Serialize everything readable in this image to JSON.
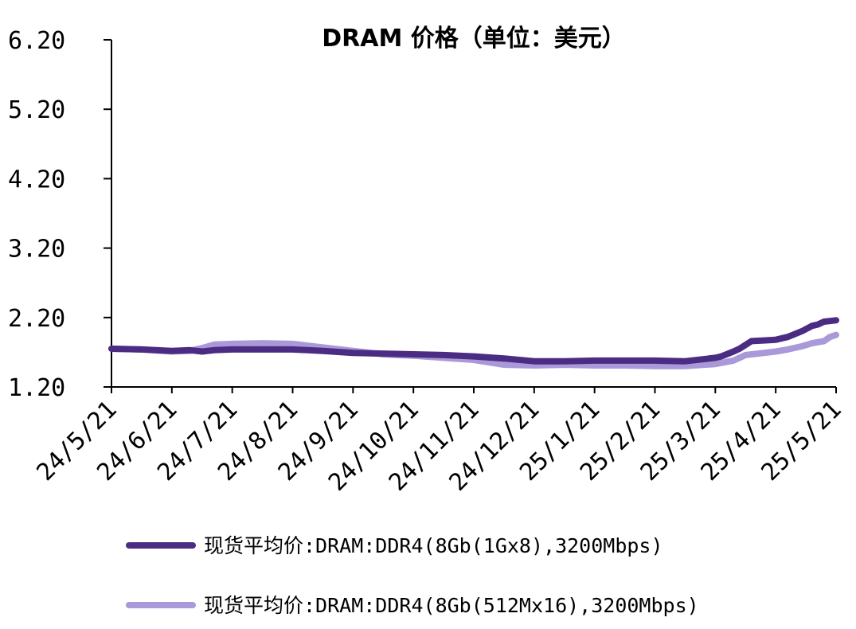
{
  "chart_data": {
    "type": "line",
    "title": "DRAM 价格（单位：美元）",
    "xlabel": "",
    "ylabel": "",
    "ylim": [
      1.2,
      6.2
    ],
    "yticks": [
      "6.20",
      "5.20",
      "4.20",
      "3.20",
      "2.20",
      "1.20"
    ],
    "yticks_values": [
      6.2,
      5.2,
      4.2,
      3.2,
      2.2,
      1.2
    ],
    "x_categories": [
      "24/5/21",
      "24/6/21",
      "24/7/21",
      "24/8/21",
      "24/9/21",
      "24/10/21",
      "24/11/21",
      "24/12/21",
      "25/1/21",
      "25/2/21",
      "25/3/21",
      "25/4/21",
      "25/5/21"
    ],
    "grid": false,
    "legend_position": "bottom",
    "series": [
      {
        "name": "现货平均价:DRAM:DDR4(8Gb(1Gx8),3200Mbps)",
        "color": "#4b2c83",
        "points": [
          [
            0,
            1.75
          ],
          [
            0.5,
            1.74
          ],
          [
            1,
            1.72
          ],
          [
            1.3,
            1.73
          ],
          [
            1.5,
            1.71
          ],
          [
            1.7,
            1.73
          ],
          [
            2,
            1.74
          ],
          [
            2.5,
            1.74
          ],
          [
            3,
            1.74
          ],
          [
            3.5,
            1.72
          ],
          [
            4,
            1.69
          ],
          [
            4.5,
            1.68
          ],
          [
            5,
            1.67
          ],
          [
            5.5,
            1.66
          ],
          [
            6,
            1.64
          ],
          [
            6.5,
            1.61
          ],
          [
            7,
            1.57
          ],
          [
            7.5,
            1.57
          ],
          [
            8,
            1.58
          ],
          [
            8.5,
            1.58
          ],
          [
            9,
            1.58
          ],
          [
            9.5,
            1.57
          ],
          [
            10,
            1.62
          ],
          [
            10.1,
            1.64
          ],
          [
            10.3,
            1.71
          ],
          [
            10.4,
            1.75
          ],
          [
            10.6,
            1.86
          ],
          [
            10.8,
            1.87
          ],
          [
            11,
            1.88
          ],
          [
            11.2,
            1.92
          ],
          [
            11.45,
            2.01
          ],
          [
            11.6,
            2.08
          ],
          [
            11.7,
            2.1
          ],
          [
            11.8,
            2.14
          ],
          [
            12,
            2.16
          ]
        ]
      },
      {
        "name": "现货平均价:DRAM:DDR4(8Gb(512Mx16),3200Mbps)",
        "color": "#a999d8",
        "points": [
          [
            0,
            1.75
          ],
          [
            0.5,
            1.74
          ],
          [
            1,
            1.71
          ],
          [
            1.3,
            1.72
          ],
          [
            1.5,
            1.76
          ],
          [
            1.7,
            1.81
          ],
          [
            2,
            1.82
          ],
          [
            2.5,
            1.83
          ],
          [
            3,
            1.82
          ],
          [
            3.5,
            1.77
          ],
          [
            4,
            1.72
          ],
          [
            4.5,
            1.67
          ],
          [
            5,
            1.65
          ],
          [
            5.5,
            1.62
          ],
          [
            6,
            1.59
          ],
          [
            6.5,
            1.52
          ],
          [
            7,
            1.51
          ],
          [
            7.5,
            1.52
          ],
          [
            8,
            1.51
          ],
          [
            8.5,
            1.51
          ],
          [
            9,
            1.5
          ],
          [
            9.5,
            1.5
          ],
          [
            10,
            1.53
          ],
          [
            10.3,
            1.58
          ],
          [
            10.5,
            1.66
          ],
          [
            10.8,
            1.69
          ],
          [
            11,
            1.71
          ],
          [
            11.2,
            1.74
          ],
          [
            11.45,
            1.79
          ],
          [
            11.6,
            1.83
          ],
          [
            11.8,
            1.86
          ],
          [
            11.9,
            1.92
          ],
          [
            12,
            1.95
          ]
        ]
      }
    ]
  }
}
